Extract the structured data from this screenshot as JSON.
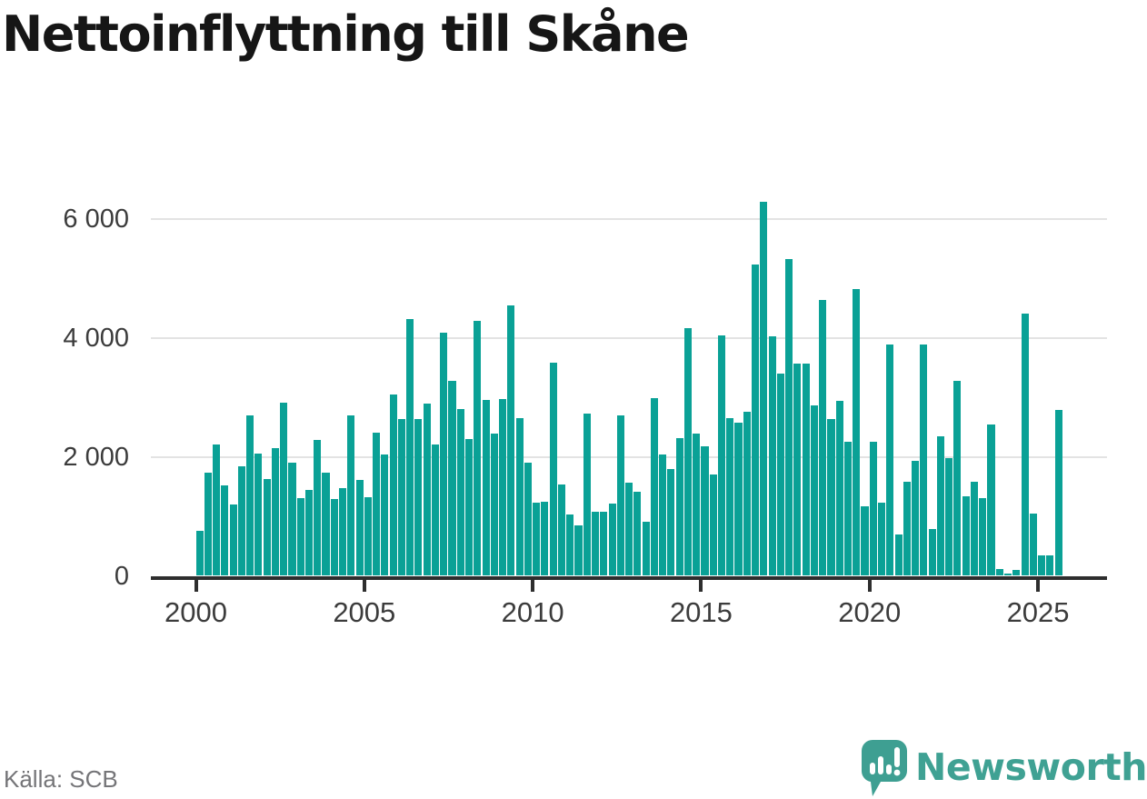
{
  "title": "Nettoinflyttning till Skåne",
  "source": "Källa: SCB",
  "branding": {
    "name": "Newsworthy",
    "wordmark_color": "#3fa193",
    "icon_color": "#3e9f92",
    "icon": "newsworthy-bubble-chart-icon"
  },
  "colors": {
    "bar": "#0aa196",
    "grid": "#e3e3e3",
    "axis": "#2e2e2e",
    "tick_label": "#3c3c3c",
    "title": "#161616",
    "source": "#757578",
    "background": "#ffffff"
  },
  "chart_data": {
    "type": "bar",
    "title": "Nettoinflyttning till Skåne",
    "frequency": "quarterly",
    "x_start": "2000-Q1",
    "x_end": "2025-Q3",
    "grid": "horizontal",
    "legend": "none",
    "ylim": [
      0,
      6600
    ],
    "y_ticks": [
      0,
      2000,
      4000,
      6000
    ],
    "y_tick_labels": [
      "0",
      "2 000",
      "4 000",
      "6 000"
    ],
    "x_tick_years": [
      2000,
      2005,
      2010,
      2015,
      2020,
      2025
    ],
    "x_tick_labels": [
      "2000",
      "2005",
      "2010",
      "2015",
      "2020",
      "2025"
    ],
    "values": [
      755,
      1730,
      2215,
      1520,
      1200,
      1840,
      2700,
      2050,
      1630,
      2150,
      2920,
      1900,
      1300,
      1445,
      2290,
      1735,
      1290,
      1470,
      2695,
      1610,
      1320,
      2405,
      2045,
      3055,
      2640,
      4320,
      2645,
      2890,
      2205,
      4095,
      3275,
      2810,
      2300,
      4295,
      2960,
      2390,
      2970,
      4550,
      2655,
      1910,
      1230,
      1240,
      3580,
      1540,
      1030,
      845,
      2735,
      1080,
      1080,
      1220,
      2695,
      1570,
      1410,
      905,
      2995,
      2035,
      1800,
      2320,
      4160,
      2390,
      2175,
      1700,
      4040,
      2650,
      2580,
      2760,
      5240,
      6290,
      4030,
      3400,
      5330,
      3570,
      3570,
      2860,
      4640,
      2630,
      2940,
      2250,
      4830,
      1175,
      2250,
      1225,
      3890,
      700,
      1580,
      1930,
      3890,
      790,
      2340,
      1975,
      3280,
      1345,
      1575,
      1310,
      2545,
      110,
      40,
      100,
      4405,
      1055,
      340,
      340,
      2785
    ]
  }
}
